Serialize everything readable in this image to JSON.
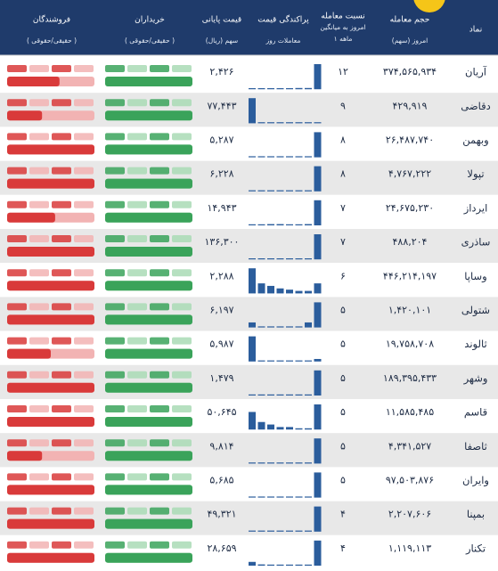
{
  "header": {
    "symbol": "نماد",
    "volume": [
      "حجم معامله",
      "امروز (سهم)"
    ],
    "ratio": [
      "نسبت معامله",
      "امروز به میانگین",
      "۱ ماهه"
    ],
    "dispersion": [
      "پراکندگی قیمت",
      "معاملات روز"
    ],
    "price": [
      "قیمت پایانی",
      "سهم (ریال)"
    ],
    "buyers": [
      "خریداران",
      "( حقیقی/حقوقی )"
    ],
    "sellers": [
      "فروشندگان",
      "( حقیقی/حقوقی )"
    ]
  },
  "table": {
    "rows": [
      {
        "symbol": "آریان",
        "volume": "۳۷۴,۵۶۵,۹۳۴",
        "ratio": "۱۲",
        "price": "۲,۴۲۶",
        "dispersion": [
          3,
          3,
          3,
          3,
          3,
          5,
          5,
          100
        ],
        "buyers_real": 100,
        "sellers_real": 60
      },
      {
        "symbol": "دقاضی",
        "volume": "۴۲۹,۹۱۹",
        "ratio": "۹",
        "price": "۷۷,۴۴۳",
        "dispersion": [
          100,
          3,
          0,
          0,
          0,
          0,
          3,
          0
        ],
        "buyers_real": 100,
        "sellers_real": 40
      },
      {
        "symbol": "وبهمن",
        "volume": "۲۶,۴۸۷,۷۴۰",
        "ratio": "۸",
        "price": "۵,۲۸۷",
        "dispersion": [
          0,
          0,
          0,
          0,
          0,
          0,
          0,
          100
        ],
        "buyers_real": 100,
        "sellers_real": 100
      },
      {
        "symbol": "تپولا",
        "volume": "۴,۷۶۷,۲۲۲",
        "ratio": "۸",
        "price": "۶,۲۲۸",
        "dispersion": [
          0,
          0,
          0,
          0,
          0,
          0,
          0,
          100
        ],
        "buyers_real": 100,
        "sellers_real": 100
      },
      {
        "symbol": "ایرداز",
        "volume": "۲۴,۶۷۵,۲۳۰",
        "ratio": "۷",
        "price": "۱۴,۹۴۳",
        "dispersion": [
          0,
          0,
          5,
          5,
          3,
          0,
          5,
          100
        ],
        "buyers_real": 100,
        "sellers_real": 55
      },
      {
        "symbol": "ساذری",
        "volume": "۴۸۸,۲۰۴",
        "ratio": "۷",
        "price": "۱۳۶,۳۰۰",
        "dispersion": [
          0,
          0,
          0,
          0,
          0,
          0,
          0,
          100
        ],
        "buyers_real": 100,
        "sellers_real": 100
      },
      {
        "symbol": "وساپا",
        "volume": "۴۴۶,۲۱۴,۱۹۷",
        "ratio": "۶",
        "price": "۲,۲۸۸",
        "dispersion": [
          100,
          40,
          30,
          20,
          15,
          10,
          10,
          40
        ],
        "buyers_real": 100,
        "sellers_real": 100
      },
      {
        "symbol": "شتولی",
        "volume": "۱,۴۲۰,۱۰۱",
        "ratio": "۵",
        "price": "۶,۱۹۷",
        "dispersion": [
          20,
          0,
          0,
          0,
          0,
          0,
          20,
          100
        ],
        "buyers_real": 100,
        "sellers_real": 100
      },
      {
        "symbol": "ثالوند",
        "volume": "۱۹,۷۵۸,۷۰۸",
        "ratio": "۵",
        "price": "۵,۹۸۷",
        "dispersion": [
          100,
          0,
          0,
          0,
          0,
          0,
          0,
          10
        ],
        "buyers_real": 100,
        "sellers_real": 50
      },
      {
        "symbol": "وشهر",
        "volume": "۱۸۹,۳۹۵,۴۳۳",
        "ratio": "۵",
        "price": "۱,۴۷۹",
        "dispersion": [
          0,
          0,
          0,
          0,
          0,
          0,
          0,
          100
        ],
        "buyers_real": 100,
        "sellers_real": 100
      },
      {
        "symbol": "قاسم",
        "volume": "۱۱,۵۸۵,۴۸۵",
        "ratio": "۵",
        "price": "۵۰,۶۴۵",
        "dispersion": [
          70,
          30,
          20,
          10,
          10,
          5,
          5,
          100
        ],
        "buyers_real": 100,
        "sellers_real": 100
      },
      {
        "symbol": "ثاصفا",
        "volume": "۴,۳۴۱,۵۲۷",
        "ratio": "۵",
        "price": "۹,۸۱۴",
        "dispersion": [
          0,
          0,
          0,
          0,
          0,
          0,
          0,
          100
        ],
        "buyers_real": 100,
        "sellers_real": 40
      },
      {
        "symbol": "وایران",
        "volume": "۹۷,۵۰۳,۸۷۶",
        "ratio": "۵",
        "price": "۵,۶۸۵",
        "dispersion": [
          0,
          0,
          0,
          0,
          0,
          0,
          0,
          100
        ],
        "buyers_real": 100,
        "sellers_real": 100
      },
      {
        "symbol": "بمپنا",
        "volume": "۲,۲۰۷,۶۰۶",
        "ratio": "۴",
        "price": "۴۹,۳۲۱",
        "dispersion": [
          0,
          0,
          0,
          0,
          0,
          0,
          0,
          100
        ],
        "buyers_real": 100,
        "sellers_real": 100
      },
      {
        "symbol": "تکنار",
        "volume": "۱,۱۱۹,۱۱۳",
        "ratio": "۴",
        "price": "۲۸,۶۵۹",
        "dispersion": [
          15,
          5,
          0,
          0,
          0,
          0,
          0,
          100
        ],
        "buyers_real": 100,
        "sellers_real": 100
      }
    ]
  }
}
